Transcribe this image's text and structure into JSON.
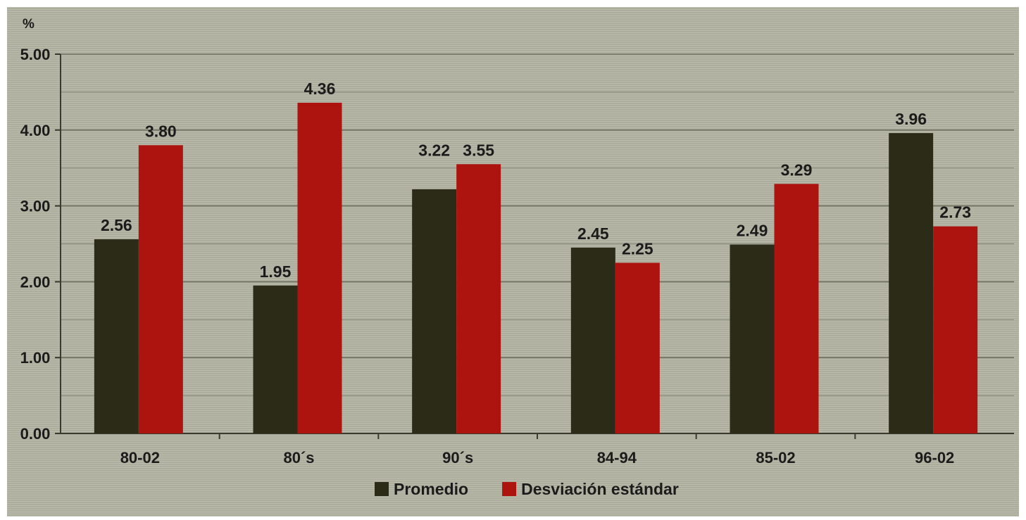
{
  "chart_data": {
    "type": "bar",
    "unit_label": "%",
    "categories": [
      "80-02",
      "80´s",
      "90´s",
      "84-94",
      "85-02",
      "96-02"
    ],
    "series": [
      {
        "name": "Promedio",
        "color": "#2b2b17",
        "values": [
          2.56,
          1.95,
          3.22,
          2.45,
          2.49,
          3.96
        ]
      },
      {
        "name": "Desviación estándar",
        "color": "#ad1410",
        "values": [
          3.8,
          4.36,
          3.55,
          2.25,
          3.29,
          2.73
        ]
      }
    ],
    "data_labels": [
      [
        "2.56",
        "1.95",
        "3.22",
        "2.45",
        "2.49",
        "3.96"
      ],
      [
        "3.80",
        "4.36",
        "3.55",
        "2.25",
        "3.29",
        "2.73"
      ]
    ],
    "y_ticks": [
      "0.00",
      "1.00",
      "2.00",
      "3.00",
      "4.00",
      "5.00"
    ],
    "ylim": [
      0,
      5
    ],
    "grid": true,
    "legend_position": "bottom-center",
    "background_color": "#b3b4a2"
  }
}
